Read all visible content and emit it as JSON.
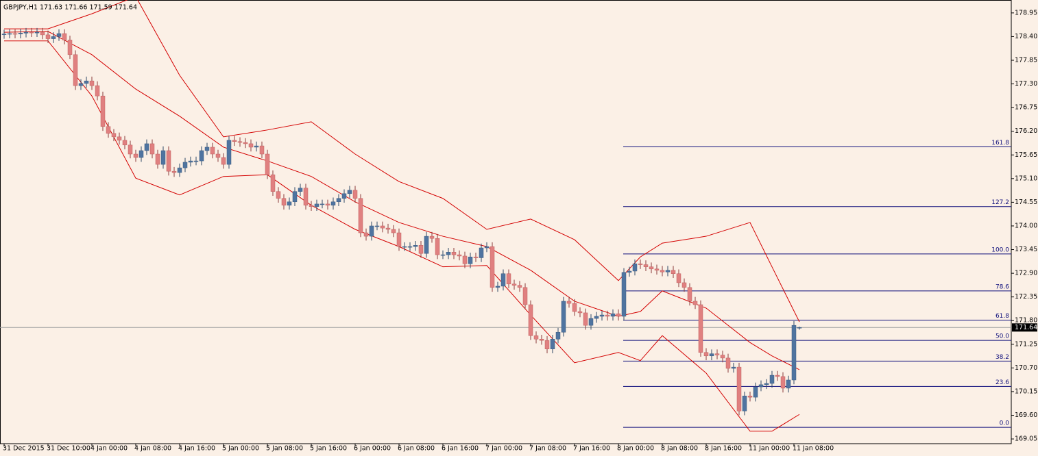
{
  "chart_data": {
    "type": "candlestick",
    "title": "GBPJPY,H1  171.63 171.66 171.59 171.64",
    "up_color": "#4f74a0",
    "down_color": "#e08080",
    "ylim": [
      168.94,
      179.25
    ],
    "yticks": [
      178.95,
      {
        "value": 178.4,
        "label": "178.40"
      },
      177.85,
      {
        "value": 177.3,
        "label": "177.30"
      },
      176.75,
      {
        "value": 176.2,
        "label": "176.20"
      },
      175.65,
      {
        "value": 175.1,
        "label": "175.10"
      },
      174.55,
      {
        "value": 174,
        "label": "174.00"
      },
      173.45,
      {
        "value": 172.9,
        "label": "172.90"
      },
      172.35,
      {
        "value": 171.8,
        "label": "171.80"
      },
      171.25,
      {
        "value": 170.7,
        "label": "170.70"
      },
      170.15,
      {
        "value": 169.6,
        "label": "169.60"
      },
      169.05
    ],
    "last_price": 171.64,
    "categories": [
      "31 Dec 2015",
      null,
      null,
      null,
      null,
      null,
      null,
      null,
      "31 Dec 10:00",
      null,
      null,
      null,
      null,
      null,
      null,
      null,
      "4 Jan 00:00",
      null,
      null,
      null,
      null,
      null,
      null,
      null,
      "4 Jan 08:00",
      null,
      null,
      null,
      null,
      null,
      null,
      null,
      "4 Jan 16:00",
      null,
      null,
      null,
      null,
      null,
      null,
      null,
      "5 Jan 00:00",
      null,
      null,
      null,
      null,
      null,
      null,
      null,
      "5 Jan 08:00",
      null,
      null,
      null,
      null,
      null,
      null,
      null,
      "5 Jan 16:00",
      null,
      null,
      null,
      null,
      null,
      null,
      null,
      "6 Jan 00:00",
      null,
      null,
      null,
      null,
      null,
      null,
      null,
      "6 Jan 08:00",
      null,
      null,
      null,
      null,
      null,
      null,
      null,
      "6 Jan 16:00",
      null,
      null,
      null,
      null,
      null,
      null,
      null,
      "7 Jan 00:00",
      null,
      null,
      null,
      null,
      null,
      null,
      null,
      "7 Jan 08:00",
      null,
      null,
      null,
      null,
      null,
      null,
      null,
      "7 Jan 16:00",
      null,
      null,
      null,
      null,
      null,
      null,
      null,
      "8 Jan 00:00",
      null,
      null,
      null,
      null,
      null,
      null,
      null,
      "8 Jan 08:00",
      null,
      null,
      null,
      null,
      null,
      null,
      null,
      "8 Jan 16:00",
      null,
      null,
      null,
      null,
      null,
      null,
      null,
      "11 Jan 00:00",
      null,
      null,
      null,
      null,
      null,
      null,
      null,
      "11 Jan 08:00",
      null
    ],
    "open": [
      178.45,
      178.46,
      178.47,
      178.46,
      178.48,
      178.5,
      178.49,
      178.5,
      178.44,
      178.35,
      178.4,
      178.47,
      178.32,
      177.98,
      177.26,
      177.31,
      177.37,
      177.26,
      177.02,
      176.31,
      176.15,
      176.07,
      175.99,
      175.88,
      175.67,
      175.59,
      175.75,
      175.91,
      175.67,
      175.43,
      175.75,
      175.27,
      175.24,
      175.35,
      175.48,
      175.51,
      175.51,
      175.75,
      175.83,
      175.67,
      175.59,
      175.43,
      175.99,
      175.96,
      175.94,
      175.91,
      175.83,
      175.86,
      175.67,
      175.19,
      174.8,
      174.64,
      174.48,
      174.56,
      174.8,
      174.88,
      174.48,
      174.45,
      174.51,
      174.51,
      174.48,
      174.56,
      174.64,
      174.75,
      174.83,
      174.64,
      173.84,
      173.76,
      174.0,
      174.0,
      173.95,
      173.92,
      173.84,
      173.52,
      173.52,
      173.52,
      173.55,
      173.36,
      173.76,
      173.71,
      173.33,
      173.33,
      173.39,
      173.33,
      173.3,
      173.12,
      173.28,
      173.26,
      173.49,
      173.52,
      172.57,
      172.6,
      172.89,
      172.65,
      172.62,
      172.57,
      172.17,
      171.45,
      171.37,
      171.34,
      171.14,
      171.37,
      171.53,
      172.25,
      172.2,
      172.01,
      171.98,
      171.69,
      171.85,
      171.9,
      171.93,
      171.9,
      171.96,
      171.9,
      172.92,
      172.95,
      173.12,
      173.1,
      173.05,
      173.0,
      172.97,
      172.93,
      172.97,
      172.89,
      172.68,
      172.57,
      172.25,
      172.17,
      171.06,
      170.98,
      171.03,
      171.0,
      170.93,
      170.69,
      170.72,
      169.7,
      170.05,
      170.02,
      170.26,
      170.31,
      170.34,
      170.53,
      170.5,
      170.23,
      170.42,
      171.63
    ],
    "high": [
      178.56,
      178.57,
      178.57,
      178.58,
      178.6,
      178.6,
      178.6,
      178.6,
      178.54,
      178.5,
      178.57,
      178.57,
      178.42,
      178.08,
      177.41,
      177.47,
      177.47,
      177.36,
      177.12,
      176.41,
      176.25,
      176.17,
      176.09,
      175.98,
      175.77,
      175.85,
      176.01,
      176.01,
      175.77,
      175.85,
      175.85,
      175.37,
      175.45,
      175.58,
      175.61,
      175.61,
      175.85,
      175.93,
      175.93,
      175.77,
      175.69,
      176.09,
      176.09,
      176.06,
      176.04,
      176.01,
      175.96,
      175.96,
      175.77,
      175.29,
      174.9,
      174.74,
      174.66,
      174.9,
      174.98,
      174.98,
      174.58,
      174.61,
      174.61,
      174.61,
      174.66,
      174.74,
      174.85,
      174.93,
      174.93,
      174.74,
      173.94,
      174.1,
      174.1,
      174.1,
      174.05,
      174.02,
      173.94,
      173.62,
      173.62,
      173.65,
      173.65,
      173.86,
      173.86,
      173.81,
      173.43,
      173.49,
      173.49,
      173.43,
      173.4,
      173.38,
      173.38,
      173.59,
      173.62,
      173.62,
      172.7,
      172.99,
      172.99,
      172.75,
      172.72,
      172.67,
      172.27,
      171.55,
      171.47,
      171.44,
      171.47,
      171.63,
      172.35,
      172.35,
      172.3,
      172.11,
      172.08,
      171.95,
      172.0,
      172.03,
      172.03,
      172.06,
      172.06,
      173.02,
      173.05,
      173.22,
      173.22,
      173.2,
      173.15,
      173.1,
      173.07,
      173.07,
      173.07,
      172.99,
      172.78,
      172.67,
      172.35,
      172.27,
      171.16,
      171.13,
      171.13,
      171.1,
      171.03,
      170.82,
      170.82,
      170.15,
      170.15,
      170.36,
      170.41,
      170.44,
      170.63,
      170.63,
      170.6,
      170.52,
      171.79,
      171.66
    ],
    "low": [
      178.35,
      178.36,
      178.36,
      178.36,
      178.38,
      178.39,
      178.39,
      178.34,
      178.25,
      178.25,
      178.3,
      178.22,
      177.88,
      177.16,
      177.16,
      177.21,
      177.16,
      176.92,
      176.21,
      176.05,
      175.97,
      175.89,
      175.78,
      175.57,
      175.49,
      175.49,
      175.65,
      175.57,
      175.33,
      175.33,
      175.17,
      175.14,
      175.14,
      175.25,
      175.38,
      175.41,
      175.41,
      175.65,
      175.57,
      175.49,
      175.33,
      175.33,
      175.86,
      175.84,
      175.81,
      175.73,
      175.73,
      175.57,
      175.09,
      174.7,
      174.54,
      174.38,
      174.38,
      174.46,
      174.7,
      174.38,
      174.35,
      174.35,
      174.41,
      174.38,
      174.38,
      174.46,
      174.54,
      174.65,
      174.54,
      173.74,
      173.66,
      173.66,
      173.9,
      173.85,
      173.82,
      173.74,
      173.42,
      173.42,
      173.42,
      173.42,
      173.26,
      173.26,
      173.61,
      173.23,
      173.23,
      173.23,
      173.23,
      173.2,
      173.02,
      173.02,
      173.16,
      173.16,
      173.39,
      172.47,
      172.47,
      172.5,
      172.55,
      172.52,
      172.47,
      172.07,
      171.35,
      171.27,
      171.24,
      171.04,
      171.04,
      171.27,
      171.43,
      172.1,
      171.91,
      171.88,
      171.59,
      171.59,
      171.75,
      171.8,
      171.8,
      171.8,
      171.8,
      171.8,
      172.82,
      172.85,
      173.0,
      172.95,
      172.9,
      172.87,
      172.83,
      172.83,
      172.79,
      172.58,
      172.47,
      172.15,
      172.07,
      170.96,
      170.88,
      170.88,
      170.9,
      170.83,
      170.59,
      170.59,
      169.6,
      169.6,
      169.92,
      169.92,
      170.16,
      170.21,
      170.24,
      170.4,
      170.13,
      170.13,
      170.32,
      171.59
    ],
    "close": [
      178.46,
      178.47,
      178.46,
      178.48,
      178.5,
      178.49,
      178.5,
      178.44,
      178.35,
      178.4,
      178.47,
      178.32,
      177.98,
      177.26,
      177.31,
      177.37,
      177.26,
      177.02,
      176.31,
      176.15,
      176.07,
      175.99,
      175.88,
      175.67,
      175.59,
      175.75,
      175.91,
      175.67,
      175.43,
      175.75,
      175.27,
      175.24,
      175.35,
      175.48,
      175.51,
      175.51,
      175.75,
      175.83,
      175.67,
      175.59,
      175.43,
      175.99,
      175.96,
      175.94,
      175.91,
      175.83,
      175.86,
      175.67,
      175.19,
      174.8,
      174.64,
      174.48,
      174.56,
      174.8,
      174.88,
      174.48,
      174.45,
      174.51,
      174.51,
      174.48,
      174.56,
      174.64,
      174.75,
      174.83,
      174.64,
      173.84,
      173.76,
      174.0,
      174.0,
      173.95,
      173.92,
      173.84,
      173.52,
      173.52,
      173.52,
      173.55,
      173.36,
      173.76,
      173.71,
      173.33,
      173.33,
      173.39,
      173.33,
      173.3,
      173.12,
      173.28,
      173.26,
      173.49,
      173.52,
      172.57,
      172.6,
      172.89,
      172.65,
      172.62,
      172.57,
      172.17,
      171.45,
      171.37,
      171.34,
      171.14,
      171.37,
      171.53,
      172.25,
      172.2,
      172.01,
      171.98,
      171.69,
      171.85,
      171.9,
      171.93,
      171.9,
      171.96,
      171.9,
      172.92,
      172.95,
      173.12,
      173.1,
      173.05,
      173.0,
      172.97,
      172.93,
      172.97,
      172.89,
      172.68,
      172.57,
      172.25,
      172.17,
      171.06,
      170.98,
      171.03,
      171.0,
      170.93,
      170.69,
      170.72,
      169.7,
      170.05,
      170.02,
      170.26,
      170.31,
      170.34,
      170.53,
      170.5,
      170.23,
      170.42,
      171.69,
      171.64
    ],
    "bollinger": {
      "color": "#d40000",
      "x": [
        0,
        8,
        16,
        24,
        32,
        40,
        48,
        56,
        64,
        72,
        80,
        88,
        96,
        104,
        112,
        116,
        120,
        128,
        136,
        140,
        145
      ],
      "upper": [
        178.58,
        178.58,
        178.93,
        179.33,
        177.5,
        176.07,
        176.23,
        176.42,
        175.67,
        175.03,
        174.64,
        173.92,
        174.16,
        173.68,
        172.73,
        173.28,
        173.6,
        173.76,
        174.08,
        173.05,
        171.77
      ],
      "middle": [
        178.5,
        178.52,
        177.98,
        177.18,
        176.55,
        175.83,
        175.51,
        175.15,
        174.56,
        174.08,
        173.76,
        173.52,
        172.97,
        172.25,
        171.9,
        172.01,
        172.49,
        172.09,
        171.29,
        170.98,
        170.66
      ],
      "lower": [
        178.3,
        178.3,
        177.02,
        175.11,
        174.72,
        175.15,
        175.19,
        174.48,
        173.92,
        173.52,
        173.05,
        173.08,
        171.93,
        170.82,
        171.06,
        170.87,
        171.45,
        170.58,
        169.23,
        169.23,
        169.62
      ]
    },
    "fibonacci": {
      "color": "#0c0c7a",
      "levels": [
        {
          "label": "161.8",
          "price": 175.84
        },
        {
          "label": "127.2",
          "price": 174.45
        },
        {
          "label": "100.0",
          "price": 173.35
        },
        {
          "label": "78.6",
          "price": 172.49
        },
        {
          "label": "61.8",
          "price": 171.81
        },
        {
          "label": "50.0",
          "price": 171.34
        },
        {
          "label": "38.2",
          "price": 170.86
        },
        {
          "label": "23.6",
          "price": 170.27
        },
        {
          "label": "0.0",
          "price": 169.32
        }
      ]
    }
  }
}
